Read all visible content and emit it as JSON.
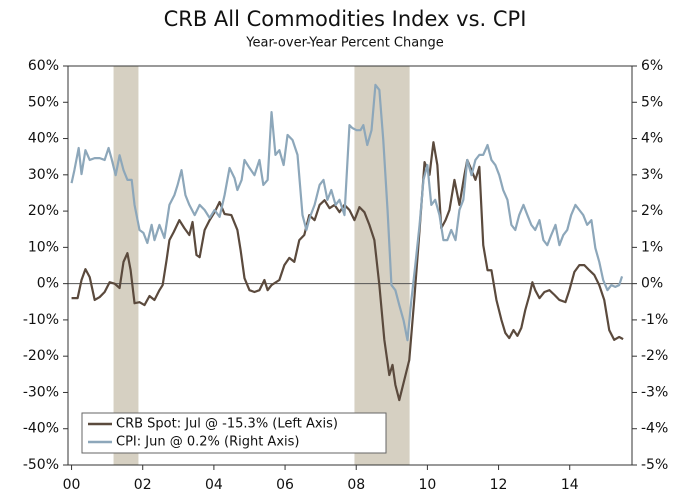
{
  "chart_data": {
    "type": "line",
    "title": "CRB All Commodities Index vs. CPI",
    "subtitle": "Year-over-Year Percent Change",
    "xlim": [
      1999.9,
      2015.75
    ],
    "xticks": [
      {
        "value": 2000,
        "label": "00"
      },
      {
        "value": 2002,
        "label": "02"
      },
      {
        "value": 2004,
        "label": "04"
      },
      {
        "value": 2006,
        "label": "06"
      },
      {
        "value": 2008,
        "label": "08"
      },
      {
        "value": 2010,
        "label": "10"
      },
      {
        "value": 2012,
        "label": "12"
      },
      {
        "value": 2014,
        "label": "14"
      }
    ],
    "ylim": [
      -50,
      60
    ],
    "yticks": [
      {
        "value": -50,
        "label": "-50%"
      },
      {
        "value": -40,
        "label": "-40%"
      },
      {
        "value": -30,
        "label": "-30%"
      },
      {
        "value": -20,
        "label": "-20%"
      },
      {
        "value": -10,
        "label": "-10%"
      },
      {
        "value": 0,
        "label": "0%"
      },
      {
        "value": 10,
        "label": "10%"
      },
      {
        "value": 20,
        "label": "20%"
      },
      {
        "value": 30,
        "label": "30%"
      },
      {
        "value": 40,
        "label": "40%"
      },
      {
        "value": 50,
        "label": "50%"
      },
      {
        "value": 60,
        "label": "60%"
      }
    ],
    "y2lim": [
      -5,
      6
    ],
    "y2ticks": [
      {
        "value": -5,
        "label": "-5%"
      },
      {
        "value": -4,
        "label": "-4%"
      },
      {
        "value": -3,
        "label": "-3%"
      },
      {
        "value": -2,
        "label": "-2%"
      },
      {
        "value": -1,
        "label": "-1%"
      },
      {
        "value": 0,
        "label": "0%"
      },
      {
        "value": 1,
        "label": "1%"
      },
      {
        "value": 2,
        "label": "2%"
      },
      {
        "value": 3,
        "label": "3%"
      },
      {
        "value": 4,
        "label": "4%"
      },
      {
        "value": 5,
        "label": "5%"
      },
      {
        "value": 6,
        "label": "6%"
      }
    ],
    "shaded_regions": [
      [
        2001.18,
        2001.88
      ],
      [
        2007.95,
        2009.5
      ]
    ],
    "shade_color": "#d6d0c2",
    "legend": "lower left",
    "series": [
      {
        "name": "CRB Spot: Jul @ -15.3% (Left Axis)",
        "color": "#5b4a3d",
        "axis": "y",
        "x": [
          2000.0,
          2000.17,
          2000.28,
          2000.39,
          2000.51,
          2000.65,
          2000.79,
          2000.93,
          2001.07,
          2001.21,
          2001.35,
          2001.46,
          2001.57,
          2001.66,
          2001.77,
          2001.91,
          2002.05,
          2002.19,
          2002.33,
          2002.47,
          2002.56,
          2002.67,
          2002.75,
          2002.87,
          2003.03,
          2003.17,
          2003.31,
          2003.4,
          2003.51,
          2003.6,
          2003.74,
          2003.88,
          2004.02,
          2004.16,
          2004.3,
          2004.49,
          2004.66,
          2004.75,
          2004.86,
          2005.0,
          2005.14,
          2005.28,
          2005.42,
          2005.51,
          2005.62,
          2005.84,
          2005.98,
          2006.12,
          2006.26,
          2006.4,
          2006.54,
          2006.68,
          2006.83,
          2006.97,
          2007.11,
          2007.25,
          2007.39,
          2007.53,
          2007.67,
          2007.81,
          2007.95,
          2008.09,
          2008.23,
          2008.37,
          2008.51,
          2008.65,
          2008.79,
          2008.93,
          2009.02,
          2009.1,
          2009.21,
          2009.35,
          2009.49,
          2009.63,
          2009.78,
          2009.92,
          2010.06,
          2010.17,
          2010.28,
          2010.39,
          2010.51,
          2010.62,
          2010.76,
          2010.9,
          2011.04,
          2011.12,
          2011.24,
          2011.35,
          2011.46,
          2011.57,
          2011.69,
          2011.8,
          2011.94,
          2012.08,
          2012.19,
          2012.3,
          2012.42,
          2012.53,
          2012.64,
          2012.75,
          2012.87,
          2012.95,
          2013.03,
          2013.15,
          2013.29,
          2013.43,
          2013.57,
          2013.71,
          2013.88,
          2013.99,
          2014.13,
          2014.27,
          2014.41,
          2014.55,
          2014.69,
          2014.83,
          2014.97,
          2015.11,
          2015.25,
          2015.39,
          2015.5
        ],
        "values": [
          -4.0,
          -4.0,
          1.0,
          4.0,
          1.8,
          -4.5,
          -3.7,
          -2.3,
          0.4,
          0,
          -1.2,
          6.0,
          8.4,
          3.7,
          -5.4,
          -5.1,
          -5.9,
          -3.4,
          -4.5,
          -1.8,
          -0.4,
          6.5,
          12.0,
          14.2,
          17.5,
          15.3,
          13.4,
          17.0,
          7.9,
          7.3,
          14.8,
          17.5,
          19.7,
          22.5,
          19.2,
          18.9,
          14.8,
          9.3,
          1.5,
          -1.8,
          -2.3,
          -1.8,
          1.0,
          -1.8,
          -0.4,
          1.0,
          5.1,
          7.1,
          6.0,
          12.0,
          13.4,
          18.9,
          17.5,
          21.7,
          23.0,
          20.8,
          21.7,
          19.7,
          21.7,
          20.3,
          17.5,
          21.1,
          19.7,
          16.2,
          12.0,
          -0.4,
          -15.5,
          -25.2,
          -22.4,
          -27.9,
          -32.1,
          -26.6,
          -21.1,
          -4.5,
          14.8,
          33.5,
          30.0,
          39.0,
          32.7,
          15.3,
          17.5,
          20.3,
          28.6,
          21.7,
          29.9,
          34.1,
          31.3,
          28.6,
          32.2,
          10.6,
          3.7,
          3.7,
          -4.5,
          -10.0,
          -13.6,
          -15.0,
          -12.8,
          -14.4,
          -12.2,
          -7.3,
          -3.1,
          0.4,
          -1.8,
          -4.0,
          -2.3,
          -1.8,
          -3.1,
          -4.5,
          -5.1,
          -1.8,
          3.2,
          5.1,
          5.1,
          3.7,
          2.4,
          -0.4,
          -4.5,
          -12.8,
          -15.5,
          -14.7,
          -15.3
        ]
      },
      {
        "name": "CPI: Jun @ 0.2% (Right Axis)",
        "color": "#8da7ba",
        "axis": "y2",
        "x": [
          2000.0,
          2000.08,
          2000.2,
          2000.28,
          2000.39,
          2000.51,
          2000.65,
          2000.79,
          2000.93,
          2001.04,
          2001.12,
          2001.24,
          2001.35,
          2001.46,
          2001.57,
          2001.69,
          2001.77,
          2001.91,
          2002.02,
          2002.13,
          2002.25,
          2002.33,
          2002.47,
          2002.61,
          2002.75,
          2002.89,
          2002.98,
          2003.09,
          2003.2,
          2003.31,
          2003.46,
          2003.6,
          2003.74,
          2003.88,
          2004.02,
          2004.16,
          2004.3,
          2004.44,
          2004.58,
          2004.66,
          2004.78,
          2004.86,
          2005.0,
          2005.14,
          2005.28,
          2005.39,
          2005.51,
          2005.62,
          2005.73,
          2005.84,
          2005.96,
          2006.07,
          2006.21,
          2006.35,
          2006.49,
          2006.6,
          2006.69,
          2006.83,
          2006.97,
          2007.08,
          2007.19,
          2007.3,
          2007.42,
          2007.53,
          2007.67,
          2007.81,
          2007.89,
          2008.01,
          2008.12,
          2008.2,
          2008.31,
          2008.43,
          2008.54,
          2008.65,
          2008.76,
          2008.88,
          2008.99,
          2009.1,
          2009.21,
          2009.33,
          2009.44,
          2009.55,
          2009.66,
          2009.78,
          2009.89,
          2010.0,
          2010.11,
          2010.22,
          2010.34,
          2010.45,
          2010.56,
          2010.67,
          2010.79,
          2010.9,
          2011.01,
          2011.12,
          2011.24,
          2011.35,
          2011.46,
          2011.57,
          2011.69,
          2011.8,
          2011.91,
          2012.02,
          2012.13,
          2012.25,
          2012.36,
          2012.47,
          2012.58,
          2012.7,
          2012.81,
          2012.92,
          2013.03,
          2013.15,
          2013.26,
          2013.37,
          2013.48,
          2013.6,
          2013.71,
          2013.82,
          2013.93,
          2014.04,
          2014.16,
          2014.27,
          2014.38,
          2014.49,
          2014.61,
          2014.72,
          2014.83,
          2014.94,
          2015.06,
          2015.17,
          2015.28,
          2015.39,
          2015.47
        ],
        "values": [
          2.77,
          3.13,
          3.74,
          3.02,
          3.68,
          3.41,
          3.46,
          3.46,
          3.41,
          3.74,
          3.46,
          2.99,
          3.54,
          3.13,
          2.86,
          2.86,
          2.17,
          1.48,
          1.4,
          1.12,
          1.62,
          1.2,
          1.62,
          1.26,
          2.17,
          2.44,
          2.72,
          3.13,
          2.44,
          2.17,
          1.89,
          2.17,
          2.03,
          1.81,
          2.03,
          1.84,
          2.44,
          3.19,
          2.91,
          2.58,
          2.86,
          3.41,
          3.19,
          2.99,
          3.41,
          2.72,
          2.86,
          4.73,
          3.55,
          3.68,
          3.27,
          4.1,
          3.96,
          3.55,
          1.89,
          1.48,
          1.81,
          2.17,
          2.72,
          2.86,
          2.31,
          2.58,
          2.17,
          2.31,
          1.89,
          4.37,
          4.29,
          4.23,
          4.23,
          4.37,
          3.82,
          4.23,
          5.48,
          5.34,
          3.96,
          2.03,
          -0.04,
          -0.18,
          -0.59,
          -1.01,
          -1.56,
          -0.45,
          0.51,
          1.62,
          2.86,
          3.27,
          2.17,
          2.31,
          1.89,
          1.2,
          1.2,
          1.48,
          1.2,
          2.03,
          2.31,
          3.41,
          2.99,
          3.41,
          3.55,
          3.55,
          3.82,
          3.41,
          3.27,
          2.99,
          2.58,
          2.31,
          1.62,
          1.48,
          1.89,
          2.17,
          1.89,
          1.62,
          1.48,
          1.75,
          1.2,
          1.06,
          1.34,
          1.62,
          1.06,
          1.34,
          1.48,
          1.89,
          2.17,
          2.03,
          1.89,
          1.62,
          1.75,
          0.98,
          0.6,
          0.1,
          -0.18,
          -0.04,
          -0.09,
          -0.04,
          0.2
        ]
      }
    ]
  }
}
